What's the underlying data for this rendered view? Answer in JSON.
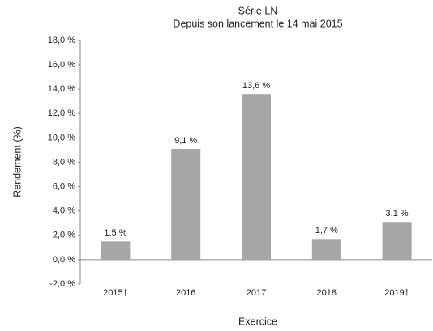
{
  "chart_data": {
    "type": "bar",
    "title": [
      "Série LN",
      "Depuis son lancement le 14 mai 2015"
    ],
    "ylabel": "Rendement (%)",
    "xlabel": "Exercice",
    "categories": [
      "2015†",
      "2016",
      "2017",
      "2018",
      "2019†"
    ],
    "values": [
      1.5,
      9.1,
      13.6,
      1.7,
      3.1
    ],
    "value_labels": [
      "1,5 %",
      "9,1 %",
      "13,6 %",
      "1,7 %",
      "3,1 %"
    ],
    "color": "#a6a6a6",
    "ylim": [
      -2,
      18
    ],
    "yticks": [
      {
        "value": -2,
        "label": "-2,0 %"
      },
      {
        "value": 0,
        "label": "0,0 %"
      },
      {
        "value": 2,
        "label": "2,0 %"
      },
      {
        "value": 4,
        "label": "4,0 %"
      },
      {
        "value": 6,
        "label": "6,0 %"
      },
      {
        "value": 8,
        "label": "8,0 %"
      },
      {
        "value": 10,
        "label": "10,0 %"
      },
      {
        "value": 12,
        "label": "12,0 %"
      },
      {
        "value": 14,
        "label": "14,0 %"
      },
      {
        "value": 16,
        "label": "16,0 %"
      },
      {
        "value": 18,
        "label": "18,0 %"
      }
    ],
    "grid": false
  }
}
